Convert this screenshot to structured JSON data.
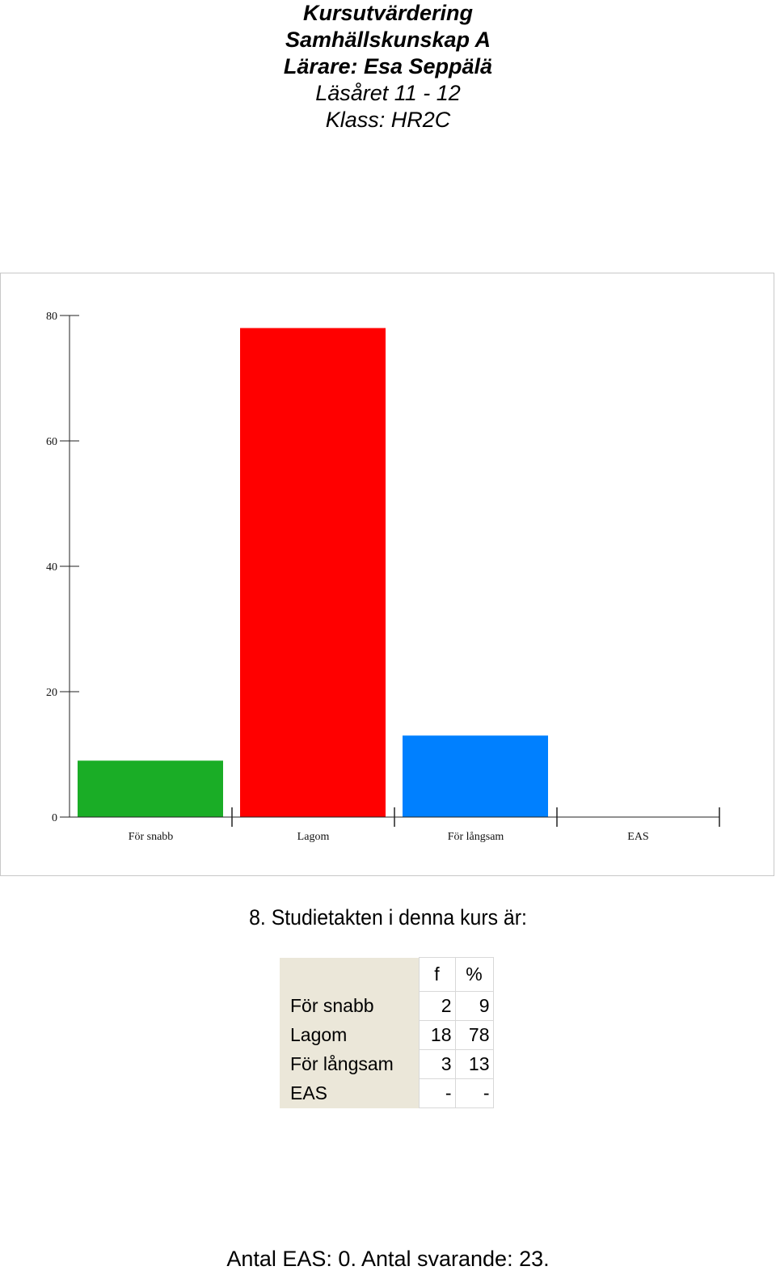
{
  "header": {
    "title": "Kursutvärdering",
    "course": "Samhällskunskap A",
    "teacher": "Lärare: Esa Seppälä",
    "year": "Läsåret 11 - 12",
    "class": "Klass: HR2C"
  },
  "chart_data": {
    "type": "bar",
    "categories": [
      "För snabb",
      "Lagom",
      "För långsam",
      "EAS"
    ],
    "values": [
      9,
      78,
      13,
      0
    ],
    "colors": [
      "#1aad26",
      "#ff0000",
      "#0080ff",
      "#ffffff"
    ],
    "ylim": [
      0,
      80
    ],
    "yticks": [
      0,
      20,
      40,
      60,
      80
    ],
    "title": "",
    "xlabel": "",
    "ylabel": "",
    "grid": false,
    "legend": "none"
  },
  "question": "8. Studietakten i denna kurs är:",
  "table": {
    "headers": [
      "",
      "f",
      "%"
    ],
    "rows": [
      {
        "label": "För snabb",
        "f": "2",
        "pct": "9"
      },
      {
        "label": "Lagom",
        "f": "18",
        "pct": "78"
      },
      {
        "label": "För långsam",
        "f": "3",
        "pct": "13"
      },
      {
        "label": "EAS",
        "f": "-",
        "pct": "-"
      }
    ]
  },
  "footer": "Antal EAS: 0. Antal svarande:  23."
}
